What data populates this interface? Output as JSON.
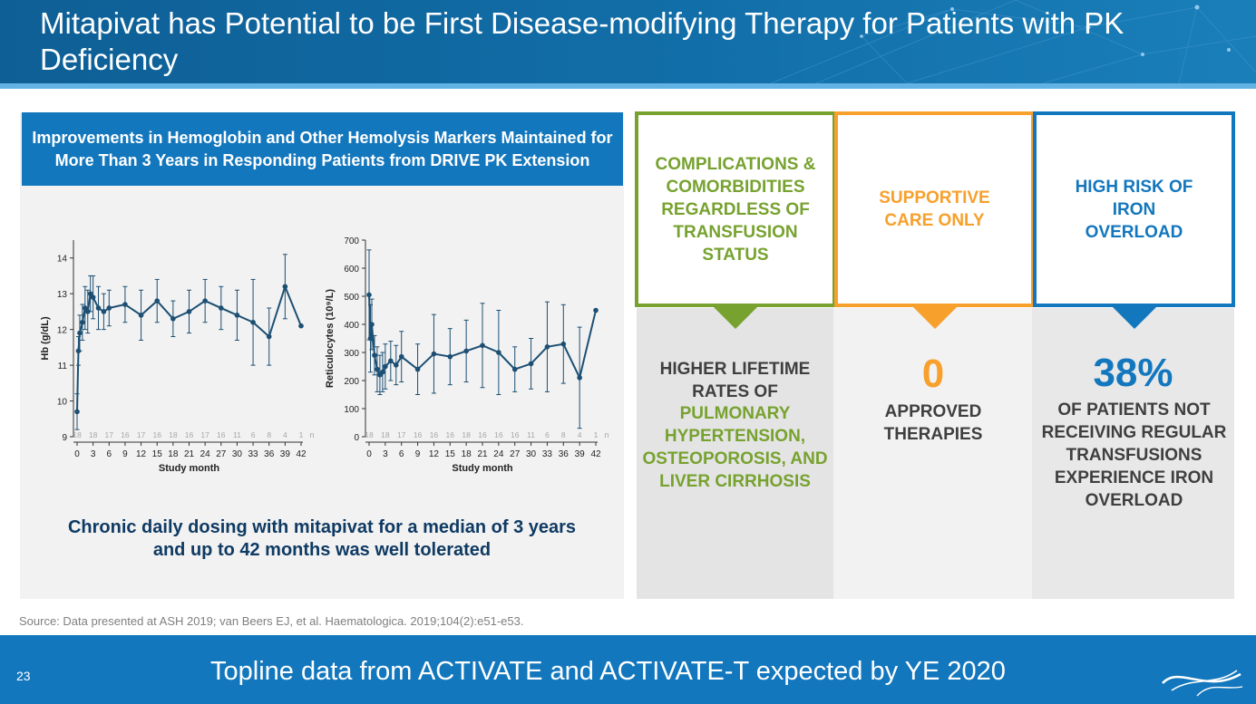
{
  "slide": {
    "title": "Mitapivat has Potential to be First Disease-modifying Therapy for Patients with PK Deficiency",
    "page_number": "23",
    "footer_text": "Topline data from ACTIVATE and ACTIVATE-T expected by YE 2020",
    "source": "Source: Data presented at ASH 2019; van Beers EJ, et al. Haematologica. 2019;104(2):e51-e53."
  },
  "left_panel": {
    "heading": "Improvements in Hemoglobin and Other Hemolysis Markers Maintained for More Than 3 Years in Responding Patients from DRIVE PK Extension",
    "tolerated": "Chronic daily dosing with mitapivat for a median of 3 years and up to 42 months was well tolerated"
  },
  "cards": [
    {
      "header": "COMPLICATIONS & COMORBIDITIES REGARDLESS OF TRANSFUSION STATUS",
      "stat": "",
      "body": "HIGHER LIFETIME RATES OF",
      "highlight": "PULMONARY HYPERTENSION, OSTEOPOROSIS, AND LIVER CIRRHOSIS",
      "color": "#77a22f"
    },
    {
      "header": "SUPPORTIVE CARE ONLY",
      "stat": "0",
      "body": "APPROVED THERAPIES",
      "highlight": "",
      "color": "#f7a02c"
    },
    {
      "header": "HIGH RISK OF IRON OVERLOAD",
      "stat": "38%",
      "body": "OF PATIENTS NOT RECEIVING REGULAR TRANSFUSIONS EXPERIENCE IRON OVERLOAD",
      "highlight": "",
      "color": "#1377bd"
    }
  ],
  "colors": {
    "header_blue": "#0e5f95",
    "accent_blue": "#1377bd",
    "light_blue": "#62b3e4",
    "green": "#77a22f",
    "orange": "#f7a02c",
    "navy": "#0f3a63",
    "line": "#1c4f73"
  },
  "chart_data": [
    {
      "type": "line",
      "xlabel": "Study month",
      "ylabel": "Hb (g/dL)",
      "ylim": [
        9,
        14.5
      ],
      "xlim": [
        0,
        42
      ],
      "yticks": [
        9,
        10,
        11,
        12,
        13,
        14
      ],
      "xticks": [
        0,
        3,
        6,
        9,
        12,
        15,
        18,
        21,
        24,
        27,
        30,
        33,
        36,
        39,
        42
      ],
      "n_label": "n",
      "n_values": [
        "18",
        "18",
        "17",
        "16",
        "17",
        "16",
        "18",
        "16",
        "17",
        "16",
        "11",
        "6",
        "8",
        "4",
        "1"
      ],
      "series": [
        {
          "x": [
            0,
            0.25,
            0.5,
            1,
            1.5,
            2,
            2.5,
            3,
            4,
            5,
            6,
            9,
            12,
            15,
            18,
            21,
            24,
            27,
            30,
            33,
            36,
            39,
            42
          ],
          "y": [
            9.7,
            11.4,
            11.9,
            12.2,
            12.6,
            12.5,
            13.0,
            12.9,
            12.6,
            12.5,
            12.6,
            12.7,
            12.4,
            12.8,
            12.3,
            12.5,
            12.8,
            12.6,
            12.4,
            12.2,
            11.8,
            13.2,
            12.1
          ],
          "err": [
            0.5,
            0.4,
            0.5,
            0.5,
            0.6,
            0.6,
            0.5,
            0.6,
            0.6,
            0.5,
            0.5,
            0.5,
            0.7,
            0.6,
            0.5,
            0.6,
            0.6,
            0.6,
            0.7,
            1.2,
            0.8,
            0.9,
            0
          ]
        }
      ]
    },
    {
      "type": "line",
      "xlabel": "Study month",
      "ylabel": "Reticulocytes (10⁹/L)",
      "ylim": [
        0,
        700
      ],
      "xlim": [
        0,
        42
      ],
      "yticks": [
        0,
        100,
        200,
        300,
        400,
        500,
        600,
        700
      ],
      "xticks": [
        0,
        3,
        6,
        9,
        12,
        15,
        18,
        21,
        24,
        27,
        30,
        33,
        36,
        39,
        42
      ],
      "n_label": "n",
      "n_values": [
        "18",
        "18",
        "17",
        "16",
        "16",
        "16",
        "18",
        "16",
        "16",
        "16",
        "11",
        "6",
        "8",
        "4",
        "1"
      ],
      "series": [
        {
          "x": [
            0,
            0.25,
            0.5,
            1,
            1.5,
            2,
            2.5,
            3,
            4,
            5,
            6,
            9,
            12,
            15,
            18,
            21,
            24,
            27,
            30,
            33,
            36,
            39,
            42
          ],
          "y": [
            505,
            350,
            400,
            290,
            240,
            220,
            230,
            250,
            270,
            255,
            285,
            240,
            295,
            285,
            305,
            325,
            300,
            240,
            260,
            320,
            330,
            210,
            450
          ],
          "err": [
            160,
            120,
            90,
            70,
            80,
            70,
            70,
            80,
            70,
            70,
            90,
            90,
            140,
            100,
            110,
            150,
            150,
            80,
            90,
            160,
            140,
            180,
            0
          ]
        }
      ]
    }
  ]
}
